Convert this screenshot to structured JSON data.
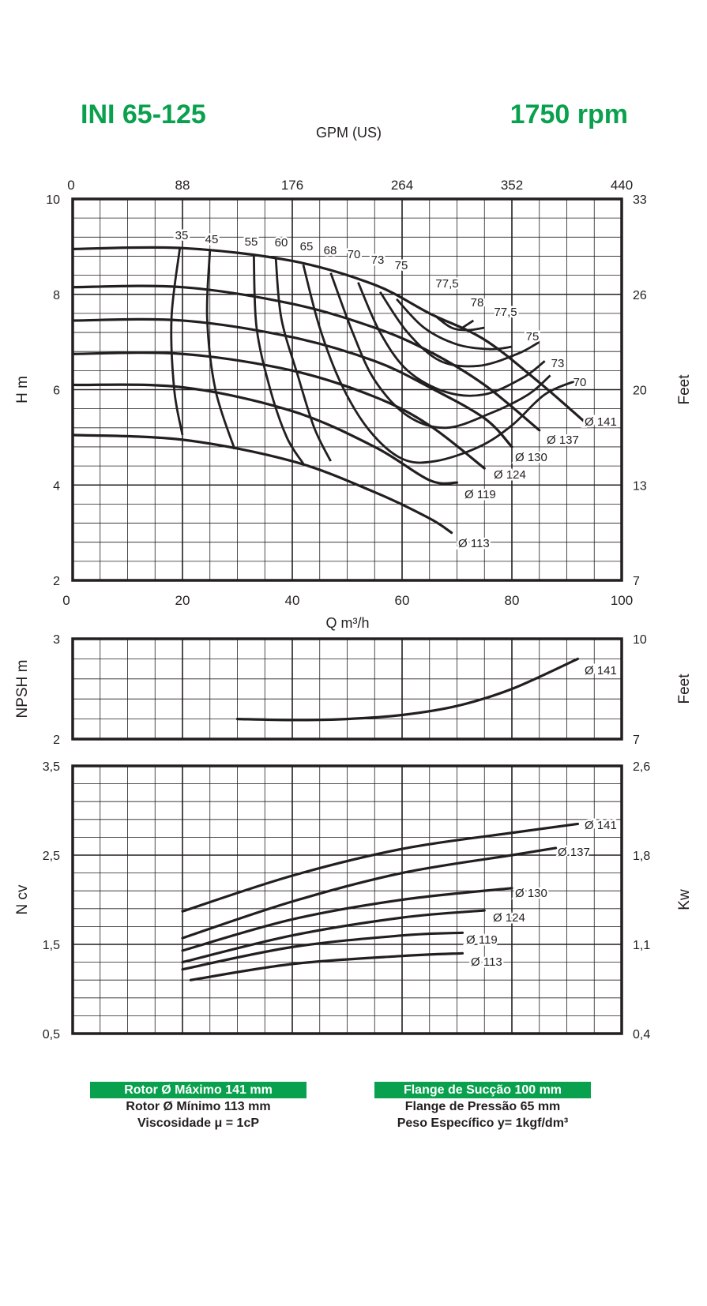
{
  "header": {
    "model": "INI 65-125",
    "speed": "1750 rpm",
    "gpm_label": "GPM (US)"
  },
  "colors": {
    "accent": "#0aa14e",
    "curve": "#231f20",
    "grid": "#231f20"
  },
  "chart_data": [
    {
      "type": "line",
      "name": "head",
      "x_bottom": {
        "label": "Q m³/h",
        "range": [
          0,
          100
        ],
        "ticks": [
          "0",
          "20",
          "40",
          "60",
          "80",
          "100"
        ]
      },
      "x_top": {
        "label": "GPM (US)",
        "ticks": [
          "0",
          "88",
          "176",
          "264",
          "352",
          "440"
        ]
      },
      "y_left": {
        "label": "H m",
        "range": [
          2,
          10
        ],
        "ticks": [
          "2",
          "4",
          "6",
          "8",
          "10"
        ]
      },
      "y_right": {
        "label": "Feet",
        "ticks": [
          "7",
          "13",
          "20",
          "26",
          "33"
        ]
      },
      "grid": true,
      "series": [
        {
          "name": "Ø 141",
          "points": [
            [
              0,
              8.95
            ],
            [
              20,
              8.97
            ],
            [
              40,
              8.7
            ],
            [
              55,
              8.2
            ],
            [
              65,
              7.6
            ],
            [
              75,
              7.05
            ],
            [
              85,
              6.15
            ],
            [
              93,
              5.35
            ]
          ]
        },
        {
          "name": "Ø 137",
          "points": [
            [
              0,
              8.15
            ],
            [
              20,
              8.15
            ],
            [
              40,
              7.8
            ],
            [
              55,
              7.3
            ],
            [
              65,
              6.8
            ],
            [
              75,
              6.1
            ],
            [
              85,
              5.15
            ]
          ]
        },
        {
          "name": "Ø 130",
          "points": [
            [
              0,
              7.45
            ],
            [
              20,
              7.45
            ],
            [
              40,
              7.1
            ],
            [
              55,
              6.6
            ],
            [
              65,
              6.05
            ],
            [
              75,
              5.4
            ],
            [
              80,
              4.8
            ]
          ]
        },
        {
          "name": "Ø 124",
          "points": [
            [
              0,
              6.75
            ],
            [
              20,
              6.75
            ],
            [
              40,
              6.4
            ],
            [
              55,
              5.85
            ],
            [
              65,
              5.25
            ],
            [
              75,
              4.35
            ]
          ]
        },
        {
          "name": "Ø 119",
          "points": [
            [
              0,
              6.1
            ],
            [
              20,
              6.05
            ],
            [
              40,
              5.55
            ],
            [
              55,
              4.8
            ],
            [
              65,
              4.1
            ],
            [
              70,
              4.05
            ]
          ]
        },
        {
          "name": "Ø 113",
          "points": [
            [
              0,
              5.05
            ],
            [
              20,
              4.95
            ],
            [
              40,
              4.5
            ],
            [
              55,
              3.85
            ],
            [
              65,
              3.3
            ],
            [
              69,
              3.0
            ]
          ]
        }
      ],
      "efficiency_labels": [
        "35",
        "45",
        "55",
        "60",
        "65",
        "68",
        "70",
        "73",
        "75",
        "77,5",
        "78",
        "77,5",
        "75",
        "73",
        "70"
      ],
      "efficiency_curves": [
        {
          "label": "35",
          "points": [
            [
              19.5,
              8.95
            ],
            [
              18,
              7.5
            ],
            [
              18.5,
              6.0
            ],
            [
              20,
              5.05
            ]
          ]
        },
        {
          "label": "45",
          "points": [
            [
              25,
              8.92
            ],
            [
              24.5,
              7.5
            ],
            [
              26,
              6.0
            ],
            [
              29.5,
              4.75
            ]
          ]
        },
        {
          "label": "55",
          "points": [
            [
              33,
              8.8
            ],
            [
              33.5,
              7.3
            ],
            [
              36,
              6.0
            ],
            [
              39,
              5.0
            ],
            [
              42,
              4.45
            ]
          ]
        },
        {
          "label": "60",
          "points": [
            [
              37,
              8.75
            ],
            [
              38,
              7.5
            ],
            [
              41,
              6.3
            ],
            [
              44,
              5.2
            ],
            [
              47,
              4.5
            ]
          ]
        },
        {
          "label": "65",
          "points": [
            [
              42,
              8.62
            ],
            [
              45,
              7.3
            ],
            [
              49,
              6.1
            ],
            [
              54,
              5.15
            ],
            [
              60,
              4.55
            ],
            [
              66,
              4.5
            ],
            [
              74,
              4.8
            ],
            [
              80,
              5.25
            ],
            [
              86,
              5.9
            ],
            [
              92,
              6.2
            ]
          ]
        },
        {
          "label": "68",
          "points": [
            [
              47,
              8.45
            ],
            [
              51,
              7.2
            ],
            [
              55,
              6.2
            ],
            [
              61,
              5.45
            ],
            [
              68,
              5.2
            ],
            [
              76,
              5.5
            ],
            [
              83,
              5.9
            ],
            [
              87,
              6.3
            ]
          ]
        },
        {
          "label": "70",
          "points": [
            [
              52,
              8.25
            ],
            [
              56,
              7.2
            ],
            [
              61,
              6.4
            ],
            [
              68,
              5.95
            ],
            [
              75,
              5.9
            ],
            [
              82,
              6.25
            ],
            [
              86,
              6.6
            ]
          ]
        },
        {
          "label": "73",
          "points": [
            [
              56,
              8.05
            ],
            [
              61,
              7.2
            ],
            [
              67,
              6.6
            ],
            [
              74,
              6.5
            ],
            [
              81,
              6.75
            ],
            [
              85,
              7.0
            ]
          ]
        },
        {
          "label": "75",
          "points": [
            [
              59,
              7.9
            ],
            [
              64,
              7.3
            ],
            [
              70,
              6.95
            ],
            [
              76,
              6.85
            ],
            [
              80,
              6.9
            ]
          ]
        },
        {
          "label": "77,5",
          "points": [
            [
              66,
              7.55
            ],
            [
              69,
              7.3
            ],
            [
              72,
              7.25
            ],
            [
              75,
              7.3
            ]
          ]
        },
        {
          "label": "78",
          "points": [
            [
              71,
              7.3
            ],
            [
              73,
              7.45
            ]
          ]
        }
      ]
    },
    {
      "type": "line",
      "name": "npsh",
      "y_left": {
        "label": "NPSH m",
        "range": [
          2,
          3
        ],
        "ticks": [
          "2",
          "3"
        ]
      },
      "y_right": {
        "label": "Feet",
        "ticks": [
          "7",
          "10"
        ]
      },
      "grid": true,
      "series": [
        {
          "name": "Ø 141",
          "points": [
            [
              30,
              2.2
            ],
            [
              40,
              2.19
            ],
            [
              50,
              2.2
            ],
            [
              60,
              2.24
            ],
            [
              70,
              2.33
            ],
            [
              80,
              2.5
            ],
            [
              92,
              2.8
            ]
          ]
        }
      ]
    },
    {
      "type": "line",
      "name": "power",
      "y_left": {
        "label": "N cv",
        "range": [
          0.5,
          3.5
        ],
        "ticks": [
          "0,5",
          "1,5",
          "2,5",
          "3,5"
        ]
      },
      "y_right": {
        "label": "Kw",
        "ticks": [
          "0,4",
          "1,1",
          "1,8",
          "2,6"
        ]
      },
      "grid": true,
      "series": [
        {
          "name": "Ø 141",
          "points": [
            [
              20,
              1.87
            ],
            [
              40,
              2.27
            ],
            [
              60,
              2.57
            ],
            [
              80,
              2.75
            ],
            [
              92,
              2.85
            ]
          ]
        },
        {
          "name": "Ø 137",
          "points": [
            [
              20,
              1.57
            ],
            [
              40,
              1.98
            ],
            [
              60,
              2.3
            ],
            [
              80,
              2.5
            ],
            [
              88,
              2.58
            ]
          ]
        },
        {
          "name": "Ø 130",
          "points": [
            [
              20,
              1.43
            ],
            [
              40,
              1.78
            ],
            [
              60,
              2.0
            ],
            [
              80,
              2.13
            ]
          ]
        },
        {
          "name": "Ø 124",
          "points": [
            [
              20,
              1.3
            ],
            [
              40,
              1.6
            ],
            [
              60,
              1.8
            ],
            [
              75,
              1.88
            ]
          ]
        },
        {
          "name": "Ø 119",
          "points": [
            [
              20,
              1.22
            ],
            [
              40,
              1.47
            ],
            [
              60,
              1.6
            ],
            [
              71,
              1.63
            ]
          ]
        },
        {
          "name": "Ø 113",
          "points": [
            [
              21.5,
              1.1
            ],
            [
              40,
              1.28
            ],
            [
              60,
              1.37
            ],
            [
              71,
              1.4
            ]
          ]
        }
      ]
    }
  ],
  "info_left": [
    "Rotor Ø Máximo 141 mm",
    "Rotor Ø Mínimo 113 mm",
    "Viscosidade μ = 1cP"
  ],
  "info_right": [
    "Flange de Sucção 100 mm",
    "Flange de Pressão 65 mm",
    "Peso Específico y= 1kgf/dm³"
  ]
}
